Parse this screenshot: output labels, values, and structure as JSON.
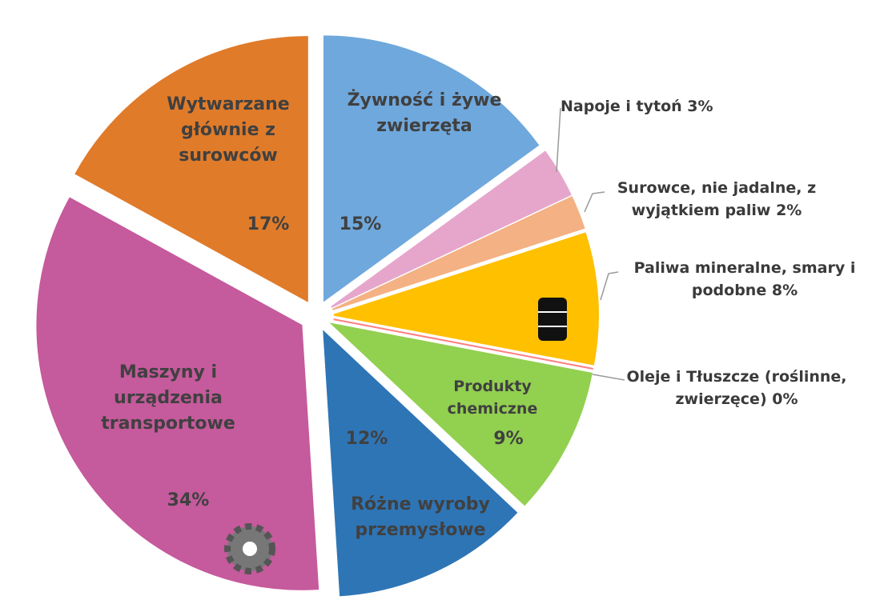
{
  "chart_data": {
    "type": "pie",
    "categories": [
      "Żywność i żywe zwierzęta",
      "Napoje i tytoń",
      "Surowce, nie jadalne, z wyjątkiem paliw",
      "Paliwa mineralne, smary i podobne",
      "Oleje i Tłuszcze (roślinne, zwierzęce)",
      "Produkty chemiczne",
      "Różne wyroby przemysłowe",
      "Maszyny i urządzenia transportowe",
      "Wytwarzane głównie z surowców"
    ],
    "values": [
      15,
      3,
      2,
      8,
      0,
      9,
      12,
      34,
      17
    ],
    "value_labels": [
      "15%",
      "3%",
      "2%",
      "8%",
      "0%",
      "9%",
      "12%",
      "34%",
      "17%"
    ],
    "colors": [
      "#6fa8dc",
      "#e6a6cc",
      "#f4b183",
      "#ffc000",
      "#ff7f7f",
      "#92d050",
      "#2e75b6",
      "#c55a9c",
      "#e07b2a"
    ]
  }
}
